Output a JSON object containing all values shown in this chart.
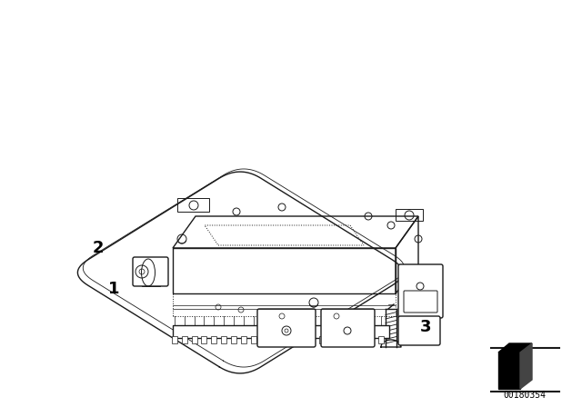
{
  "background_color": "#ffffff",
  "text_color": "#000000",
  "line_color": "#1a1a1a",
  "part_labels": [
    "1",
    "2",
    "3"
  ],
  "diagram_number": "00180354",
  "figsize": [
    6.4,
    4.48
  ],
  "dpi": 100
}
